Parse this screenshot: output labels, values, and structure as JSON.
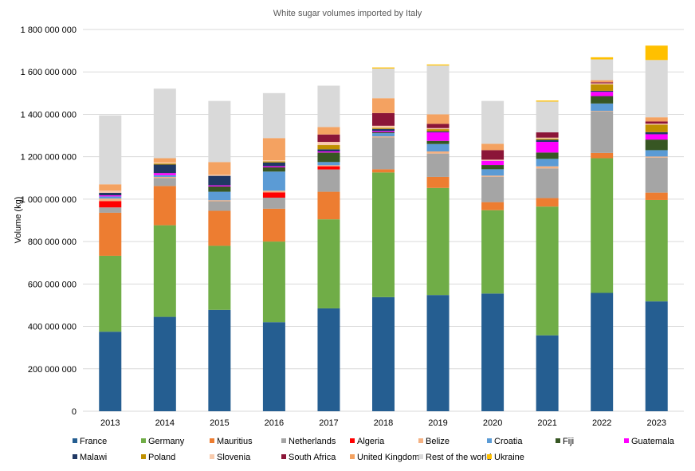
{
  "chart_data": {
    "type": "bar",
    "stacked": true,
    "title": "White sugar volumes imported by Italy",
    "xlabel": "",
    "ylabel": "Volume (kg)",
    "ylim": [
      0,
      1800000000
    ],
    "y_ticks": [
      0,
      200000000,
      400000000,
      600000000,
      800000000,
      1000000000,
      1200000000,
      1400000000,
      1600000000,
      1800000000
    ],
    "y_tick_labels": [
      "0",
      "200 000 000",
      "400 000 000",
      "600 000 000",
      "800 000 000",
      "1 000 000 000",
      "1 200 000 000",
      "1 400 000 000",
      "1 600 000 000",
      "1 800 000 000"
    ],
    "grid": true,
    "legend_position": "bottom",
    "categories": [
      "2013",
      "2014",
      "2015",
      "2016",
      "2017",
      "2018",
      "2019",
      "2020",
      "2021",
      "2022",
      "2023"
    ],
    "series": [
      {
        "name": "France",
        "color": "#255e91",
        "values": [
          375000000,
          445000000,
          478000000,
          420000000,
          485000000,
          538000000,
          548000000,
          555000000,
          358000000,
          558000000,
          518000000
        ]
      },
      {
        "name": "Germany",
        "color": "#70ad47",
        "values": [
          358000000,
          432000000,
          302000000,
          380000000,
          420000000,
          588000000,
          505000000,
          393000000,
          607000000,
          635000000,
          478000000
        ]
      },
      {
        "name": "Mauritius",
        "color": "#ed7d31",
        "values": [
          203000000,
          185000000,
          165000000,
          155000000,
          130000000,
          15000000,
          52000000,
          38000000,
          40000000,
          25000000,
          35000000
        ]
      },
      {
        "name": "Netherlands",
        "color": "#a5a5a5",
        "values": [
          25000000,
          38000000,
          45000000,
          52000000,
          105000000,
          150000000,
          110000000,
          120000000,
          140000000,
          195000000,
          165000000
        ]
      },
      {
        "name": "Algeria",
        "color": "#ff0000",
        "values": [
          30000000,
          0,
          0,
          25000000,
          15000000,
          0,
          0,
          0,
          0,
          0,
          0
        ]
      },
      {
        "name": "Belize",
        "color": "#f4b183",
        "values": [
          12000000,
          5000000,
          5000000,
          8000000,
          5000000,
          5000000,
          10000000,
          5000000,
          10000000,
          3000000,
          5000000
        ]
      },
      {
        "name": "Croatia",
        "color": "#5b9bd5",
        "values": [
          10000000,
          8000000,
          40000000,
          90000000,
          15000000,
          15000000,
          35000000,
          30000000,
          35000000,
          35000000,
          30000000
        ]
      },
      {
        "name": "Fiji",
        "color": "#375623",
        "values": [
          0,
          0,
          25000000,
          20000000,
          45000000,
          5000000,
          15000000,
          20000000,
          30000000,
          35000000,
          50000000
        ]
      },
      {
        "name": "Guatemala",
        "color": "#ff00ff",
        "values": [
          5000000,
          10000000,
          5000000,
          5000000,
          5000000,
          5000000,
          40000000,
          20000000,
          50000000,
          20000000,
          25000000
        ]
      },
      {
        "name": "Malawi",
        "color": "#203864",
        "values": [
          12000000,
          40000000,
          45000000,
          18000000,
          10000000,
          10000000,
          5000000,
          0,
          10000000,
          5000000,
          10000000
        ]
      },
      {
        "name": "Poland",
        "color": "#bf9000",
        "values": [
          0,
          5000000,
          0,
          5000000,
          20000000,
          5000000,
          10000000,
          0,
          5000000,
          30000000,
          35000000
        ]
      },
      {
        "name": "Slovenia",
        "color": "#f8cbad",
        "values": [
          10000000,
          5000000,
          5000000,
          5000000,
          15000000,
          10000000,
          5000000,
          5000000,
          5000000,
          5000000,
          5000000
        ]
      },
      {
        "name": "South Africa",
        "color": "#8b1538",
        "values": [
          0,
          0,
          0,
          0,
          35000000,
          60000000,
          20000000,
          45000000,
          25000000,
          5000000,
          10000000
        ]
      },
      {
        "name": "United Kingdom",
        "color": "#f4a261",
        "values": [
          30000000,
          20000000,
          60000000,
          105000000,
          35000000,
          70000000,
          45000000,
          30000000,
          0,
          10000000,
          20000000
        ]
      },
      {
        "name": "Rest of the world",
        "color": "#d9d9d9",
        "values": [
          325000000,
          328000000,
          288000000,
          212000000,
          195000000,
          140000000,
          230000000,
          202000000,
          145000000,
          98000000,
          270000000
        ]
      },
      {
        "name": "Ukraine",
        "color": "#ffc000",
        "values": [
          0,
          0,
          0,
          0,
          0,
          5000000,
          5000000,
          0,
          5000000,
          10000000,
          68000000
        ]
      }
    ]
  }
}
